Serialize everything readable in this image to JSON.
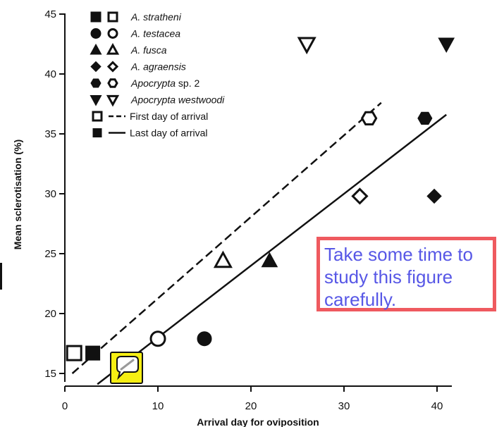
{
  "chart_data": {
    "type": "scatter",
    "xlabel": "Arrival day for oviposition",
    "ylabel": "Mean sclerotisation (%)",
    "xlim": [
      0,
      42
    ],
    "ylim": [
      15,
      45
    ],
    "xticks": [
      0,
      10,
      20,
      30,
      40
    ],
    "yticks": [
      15,
      20,
      25,
      30,
      35,
      40,
      45
    ],
    "legend_position": "top-left",
    "series": [
      {
        "name": "A. stratheni",
        "marker": "square",
        "first": {
          "x": 1,
          "y": 16.7
        },
        "last": {
          "x": 3,
          "y": 16.7
        }
      },
      {
        "name": "A. testacea",
        "marker": "circle",
        "first": {
          "x": 10,
          "y": 17.9
        },
        "last": {
          "x": 15,
          "y": 17.9
        }
      },
      {
        "name": "A. fusca",
        "marker": "triangle-up",
        "first": {
          "x": 17,
          "y": 24.4
        },
        "last": {
          "x": 22,
          "y": 24.4
        }
      },
      {
        "name": "A. agraensis",
        "marker": "diamond",
        "first": {
          "x": 31.7,
          "y": 29.8
        },
        "last": {
          "x": 39.7,
          "y": 29.8
        }
      },
      {
        "name": "Apocrypta sp. 2",
        "marker": "hexagon",
        "first": {
          "x": 32.7,
          "y": 36.3
        },
        "last": {
          "x": 38.7,
          "y": 36.3
        }
      },
      {
        "name": "Apocrypta westwoodi",
        "marker": "triangle-down",
        "first": {
          "x": 26,
          "y": 42.5
        },
        "last": {
          "x": 41,
          "y": 42.5
        }
      }
    ],
    "regression_lines": [
      {
        "name": "First day of arrival",
        "style": "dashed",
        "from": [
          0.8,
          15
        ],
        "to": [
          34,
          37.6
        ]
      },
      {
        "name": "Last day of arrival",
        "style": "solid",
        "from": [
          3.5,
          14.1
        ],
        "to": [
          41,
          36.6
        ]
      }
    ],
    "legend": [
      {
        "label": "A. stratheni",
        "italic": true,
        "marker": "square"
      },
      {
        "label": "A. testacea",
        "italic": true,
        "marker": "circle"
      },
      {
        "label": "A. fusca",
        "italic": true,
        "marker": "triangle-up"
      },
      {
        "label": "A. agraensis",
        "italic": true,
        "marker": "diamond"
      },
      {
        "label_italic": "Apocrypta",
        "label_rest": " sp. 2",
        "marker": "hexagon"
      },
      {
        "label": "Apocrypta westwoodi",
        "italic": true,
        "marker": "triangle-down"
      },
      {
        "label": "First day of arrival",
        "italic": false,
        "marker": "square",
        "line": "dashed",
        "fill": "open"
      },
      {
        "label": "Last day of arrival",
        "italic": false,
        "marker": "square",
        "line": "solid",
        "fill": "filled"
      }
    ]
  },
  "note": {
    "text": "Take some time to study this figure carefully.",
    "text_color": "#5757e6",
    "border_color": "#ef5a5f"
  },
  "comment_button": {
    "icon": "speech-bubble-icon",
    "background": "#f6ef13"
  }
}
